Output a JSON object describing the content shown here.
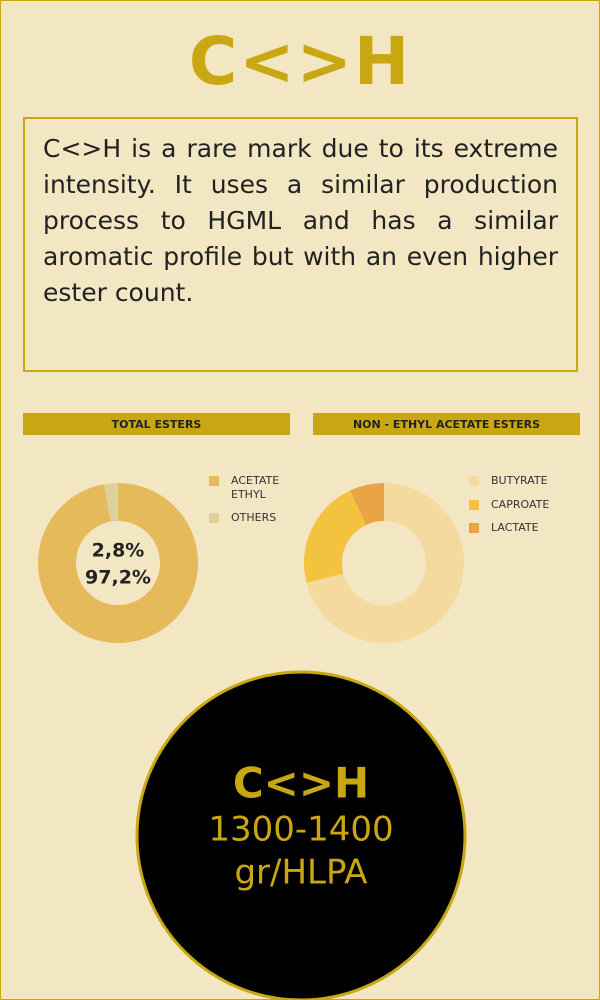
{
  "title": "C<>H",
  "description": "C<>H is a rare mark due to its extreme intensity. It uses a similar production process to HGML and has a similar aromatic profile but with an even higher ester count.",
  "chart_data": [
    {
      "type": "donut",
      "title": "TOTAL ESTERS",
      "categories": [
        "ACETATE ETHYL",
        "OTHERS"
      ],
      "values": [
        97.2,
        2.8
      ],
      "value_labels": [
        "97,2%",
        "2,8%"
      ],
      "colors": [
        "#e4ba5b",
        "#ddd09c"
      ]
    },
    {
      "type": "donut",
      "title": "NON - ETHYL ACETATE ESTERS",
      "categories": [
        "BUTYRATE",
        "CAPROATE",
        "LACTATE"
      ],
      "values": [
        71,
        22,
        7
      ],
      "colors": [
        "#f5daa0",
        "#f3c340",
        "#e9a545"
      ]
    }
  ],
  "badge": {
    "title": "C<>H",
    "value": "1300-1400",
    "unit": "gr/HLPA"
  }
}
